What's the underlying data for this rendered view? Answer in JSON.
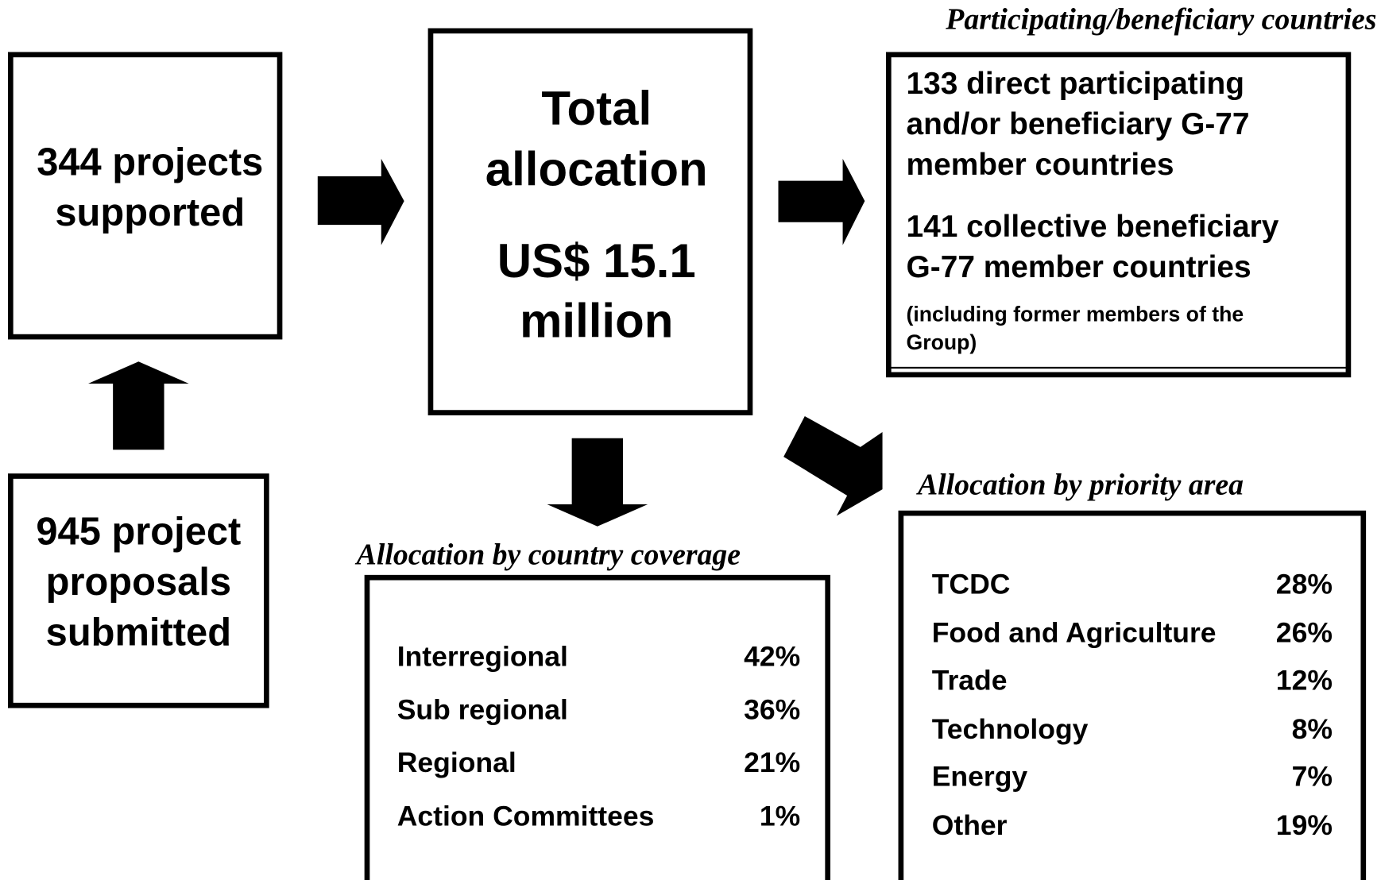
{
  "supported": {
    "lines": [
      "344 projects",
      "supported"
    ]
  },
  "proposals": {
    "lines": [
      "945 project",
      "proposals",
      "submitted"
    ]
  },
  "total": {
    "lines": [
      "Total",
      "allocation",
      "US$ 15.1",
      "million"
    ]
  },
  "countries": {
    "title": "Participating/beneficiary countries",
    "lines": [
      "133 direct participating",
      "and/or beneficiary G-77",
      "member countries",
      "141 collective beneficiary",
      "G-77 member countries"
    ],
    "note": [
      "(including former members of the",
      "Group)"
    ]
  },
  "coverage": {
    "title": "Allocation by country coverage",
    "rows": [
      [
        "Interregional",
        "42%"
      ],
      [
        "Sub regional",
        "36%"
      ],
      [
        "Regional",
        "21%"
      ],
      [
        "Action Committees",
        "1%"
      ]
    ]
  },
  "priority": {
    "title": "Allocation by priority area",
    "rows": [
      [
        "TCDC",
        "28%"
      ],
      [
        "Food and Agriculture",
        "26%"
      ],
      [
        "Trade",
        "12%"
      ],
      [
        "Technology",
        "8%"
      ],
      [
        "Energy",
        "7%"
      ],
      [
        "Other",
        "19%"
      ]
    ]
  }
}
